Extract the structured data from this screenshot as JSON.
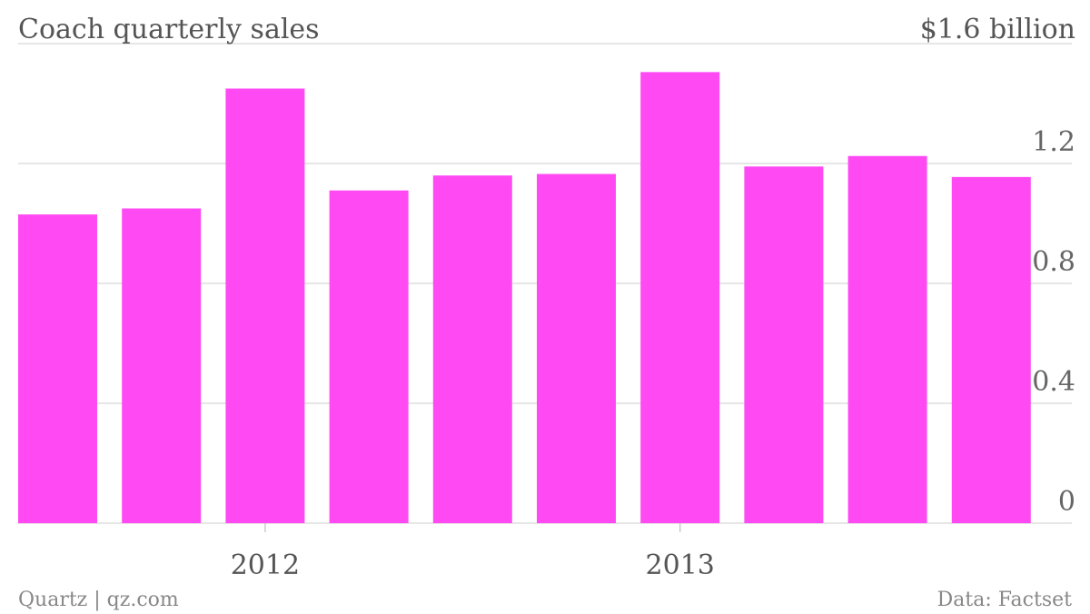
{
  "chart_data": {
    "type": "bar",
    "title": "Coach quarterly sales",
    "ylabel": "",
    "xlabel": "",
    "ylim": [
      0,
      1.6
    ],
    "y_ticks": [
      {
        "value": 0,
        "label": "0"
      },
      {
        "value": 0.4,
        "label": "0.4"
      },
      {
        "value": 0.8,
        "label": "0.8"
      },
      {
        "value": 1.2,
        "label": "1.2"
      },
      {
        "value": 1.6,
        "label": "$1.6 billion"
      }
    ],
    "x_ticks": [
      {
        "position": 2.5,
        "label": "2012"
      },
      {
        "position": 6.5,
        "label": "2013"
      }
    ],
    "values": [
      1.03,
      1.05,
      1.45,
      1.11,
      1.16,
      1.165,
      1.505,
      1.19,
      1.225,
      1.155
    ],
    "bar_color": "#ff4af4",
    "grid": true
  },
  "footer": {
    "source_left": "Quartz | qz.com",
    "source_right": "Data: Factset"
  }
}
